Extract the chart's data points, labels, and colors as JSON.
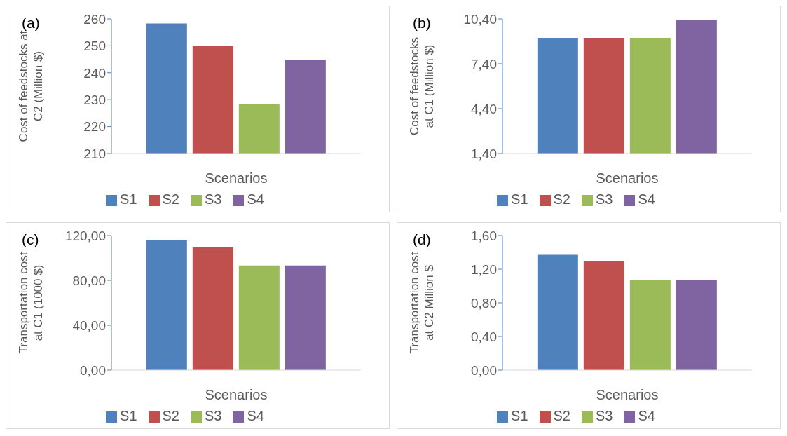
{
  "chart_data": [
    {
      "type": "bar",
      "title": "(a)",
      "categories": [
        null
      ],
      "xlabel": "Scenarios",
      "ylabel": "Cost of feedstocks at\nC2  (Million $)",
      "series": [
        {
          "name": "S1",
          "color": "#4f81bd",
          "values": [
            258.3
          ]
        },
        {
          "name": "S2",
          "color": "#c0504d",
          "values": [
            250
          ]
        },
        {
          "name": "S3",
          "color": "#9bbb59",
          "values": [
            228.2
          ]
        },
        {
          "name": "S4",
          "color": "#8064a2",
          "values": [
            244.8
          ]
        }
      ],
      "ylim": [
        210,
        260
      ],
      "yticks": [
        210,
        220,
        230,
        240,
        250,
        260
      ],
      "grid": false,
      "legend": "bottom"
    },
    {
      "type": "bar",
      "title": "(b)",
      "categories": [
        null
      ],
      "xlabel": "Scenarios",
      "ylabel": "Cost of feedstocks\nat C1  (Million $)",
      "series": [
        {
          "name": "S1",
          "color": "#4f81bd",
          "values": [
            9.14
          ]
        },
        {
          "name": "S2",
          "color": "#c0504d",
          "values": [
            9.14
          ]
        },
        {
          "name": "S3",
          "color": "#9bbb59",
          "values": [
            9.14
          ]
        },
        {
          "name": "S4",
          "color": "#8064a2",
          "values": [
            10.34
          ]
        }
      ],
      "ylim": [
        1.4,
        10.4
      ],
      "yticks": [
        {
          "value": 1.4,
          "label": "1,40"
        },
        {
          "value": 4.4,
          "label": "4,40"
        },
        {
          "value": 7.4,
          "label": "7,40"
        },
        {
          "value": 10.4,
          "label": "10,40"
        }
      ],
      "grid": false,
      "legend": "bottom"
    },
    {
      "type": "bar",
      "title": "(c)",
      "categories": [
        null
      ],
      "xlabel": "Scenarios",
      "ylabel": "Transportation cost\nat C1 (1000 $)",
      "series": [
        {
          "name": "S1",
          "color": "#4f81bd",
          "values": [
            115.6
          ]
        },
        {
          "name": "S2",
          "color": "#c0504d",
          "values": [
            109.6
          ]
        },
        {
          "name": "S3",
          "color": "#9bbb59",
          "values": [
            93.3
          ]
        },
        {
          "name": "S4",
          "color": "#8064a2",
          "values": [
            93.3
          ]
        }
      ],
      "ylim": [
        0,
        120
      ],
      "yticks": [
        {
          "value": 0,
          "label": "0,00"
        },
        {
          "value": 40,
          "label": "40,00"
        },
        {
          "value": 80,
          "label": "80,00"
        },
        {
          "value": 120,
          "label": "120,00"
        }
      ],
      "grid": false,
      "legend": "bottom"
    },
    {
      "type": "bar",
      "title": "(d)",
      "categories": [
        null
      ],
      "xlabel": "Scenarios",
      "ylabel": "Transportation cost\nat C2 Million $",
      "series": [
        {
          "name": "S1",
          "color": "#4f81bd",
          "values": [
            1.37
          ]
        },
        {
          "name": "S2",
          "color": "#c0504d",
          "values": [
            1.3
          ]
        },
        {
          "name": "S3",
          "color": "#9bbb59",
          "values": [
            1.07
          ]
        },
        {
          "name": "S4",
          "color": "#8064a2",
          "values": [
            1.07
          ]
        }
      ],
      "ylim": [
        0,
        1.6
      ],
      "yticks": [
        {
          "value": 0,
          "label": "0,00"
        },
        {
          "value": 0.4,
          "label": "0,40"
        },
        {
          "value": 0.8,
          "label": "0,80"
        },
        {
          "value": 1.2,
          "label": "1,20"
        },
        {
          "value": 1.6,
          "label": "1,60"
        }
      ],
      "grid": false,
      "legend": "bottom"
    }
  ]
}
